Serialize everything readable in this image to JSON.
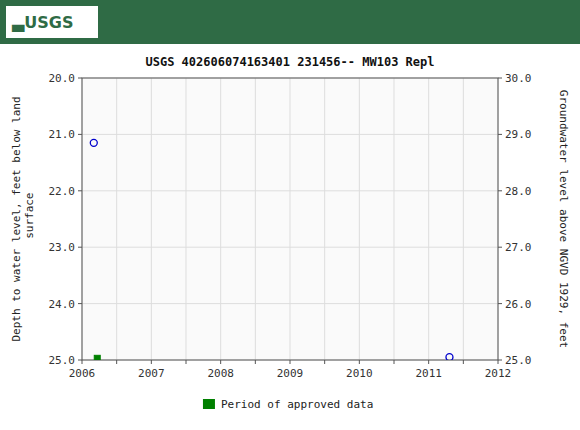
{
  "chart_data": {
    "type": "scatter",
    "title": "USGS 402606074163401 231456-- MW103 Repl",
    "annotations": [
      "▃USGS"
    ],
    "y_label": "Depth to water level, feet below land\n surface",
    "y2_label": "Groundwater level above NGVD 1929, feet",
    "xlim": [
      2006,
      2012
    ],
    "xticks": [
      2006,
      {
        "value": 2006.5,
        "label": null
      },
      2007,
      {
        "value": 2007.5,
        "label": null
      },
      2008,
      {
        "value": 2008.5,
        "label": null
      },
      2009,
      {
        "value": 2009.5,
        "label": null
      },
      2010,
      {
        "value": 2010.5,
        "label": null
      },
      2011,
      {
        "value": 2011.5,
        "label": null
      },
      2012
    ],
    "ylim": [
      25.0,
      20.0
    ],
    "yticks": [
      {
        "value": 20.0,
        "label": "20.0"
      },
      {
        "value": 21.0,
        "label": "21.0"
      },
      {
        "value": 22.0,
        "label": "22.0"
      },
      {
        "value": 23.0,
        "label": "23.0"
      },
      {
        "value": 24.0,
        "label": "24.0"
      },
      {
        "value": 25.0,
        "label": "25.0"
      }
    ],
    "y2lim": [
      25.0,
      30.0
    ],
    "y2ticks": [
      {
        "value": 25.0,
        "label": "25.0"
      },
      {
        "value": 26.0,
        "label": "26.0"
      },
      {
        "value": 27.0,
        "label": "27.0"
      },
      {
        "value": 28.0,
        "label": "28.0"
      },
      {
        "value": 29.0,
        "label": "29.0"
      },
      {
        "value": 30.0,
        "label": "30.0"
      }
    ],
    "grid": true,
    "legend": "bottom",
    "series": [
      {
        "color": "#0000cc",
        "marker": "circle",
        "x": [
          2006.17,
          2011.3
        ],
        "values": [
          21.15,
          24.95
        ]
      },
      {
        "name": "Period of approved data",
        "color": "#008000",
        "marker": "square",
        "x": [
          2006.22
        ],
        "values": [
          24.97
        ]
      }
    ]
  }
}
